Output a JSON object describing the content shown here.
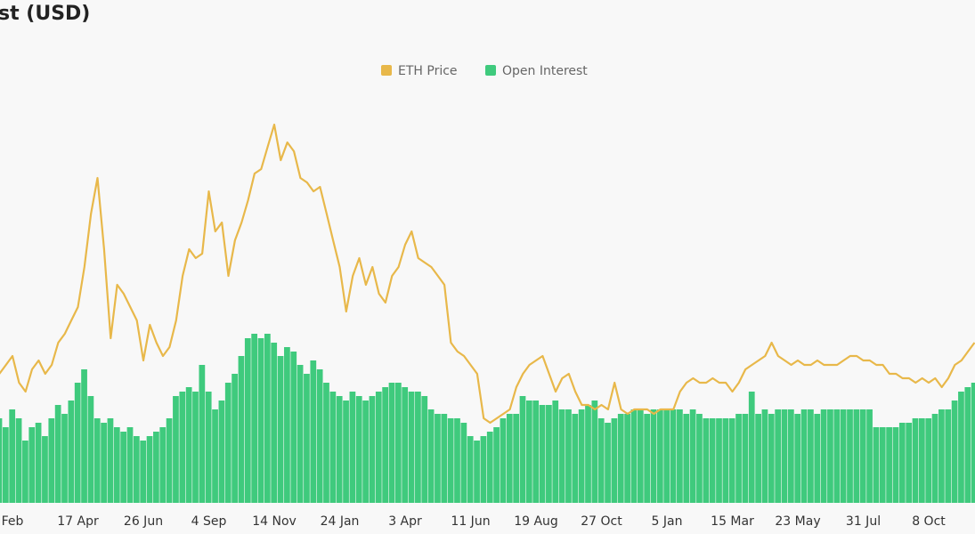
{
  "chart_data": {
    "type": "bar-line",
    "title": "st (USD)",
    "categories": [
      null,
      null,
      "Feb",
      null,
      null,
      null,
      null,
      null,
      null,
      null,
      null,
      null,
      "17 Apr",
      null,
      null,
      null,
      null,
      null,
      null,
      null,
      null,
      null,
      "26 Jun",
      null,
      null,
      null,
      null,
      null,
      null,
      null,
      null,
      null,
      "4 Sep",
      null,
      null,
      null,
      null,
      null,
      null,
      null,
      null,
      null,
      "14 Nov",
      null,
      null,
      null,
      null,
      null,
      null,
      null,
      null,
      null,
      "24 Jan",
      null,
      null,
      null,
      null,
      null,
      null,
      null,
      null,
      null,
      "3 Apr",
      null,
      null,
      null,
      null,
      null,
      null,
      null,
      null,
      null,
      "11 Jun",
      null,
      null,
      null,
      null,
      null,
      null,
      null,
      null,
      null,
      "19 Aug",
      null,
      null,
      null,
      null,
      null,
      null,
      null,
      null,
      null,
      "27 Oct",
      null,
      null,
      null,
      null,
      null,
      null,
      null,
      null,
      null,
      "5 Jan",
      null,
      null,
      null,
      null,
      null,
      null,
      null,
      null,
      null,
      "15 Mar",
      null,
      null,
      null,
      null,
      null,
      null,
      null,
      null,
      null,
      "23 May",
      null,
      null,
      null,
      null,
      null,
      null,
      null,
      null,
      null,
      "31 Jul",
      null,
      null,
      null,
      null,
      null,
      null,
      null,
      null,
      null,
      "8 Oct",
      null,
      null,
      null,
      null,
      null,
      null,
      null
    ],
    "series": [
      {
        "name": "ETH Price",
        "type": "line",
        "color": "#e8b84a",
        "values": [
          29,
          31,
          33,
          27,
          25,
          30,
          32,
          29,
          31,
          36,
          38,
          41,
          44,
          53,
          65,
          73,
          57,
          37,
          49,
          47,
          44,
          41,
          32,
          40,
          36,
          33,
          35,
          41,
          51,
          57,
          55,
          56,
          70,
          61,
          63,
          51,
          59,
          63,
          68,
          74,
          75,
          80,
          85,
          77,
          81,
          79,
          73,
          72,
          70,
          71,
          65,
          59,
          53,
          43,
          51,
          55,
          49,
          53,
          47,
          45,
          51,
          53,
          58,
          61,
          55,
          54,
          53,
          51,
          49,
          36,
          34,
          33,
          31,
          29,
          19,
          18,
          19,
          20,
          21,
          26,
          29,
          31,
          32,
          33,
          29,
          25,
          28,
          29,
          25,
          22,
          22,
          21,
          22,
          21,
          27,
          21,
          20,
          21,
          21,
          21,
          20,
          21,
          21,
          21,
          25,
          27,
          28,
          27,
          27,
          28,
          27,
          27,
          25,
          27,
          30,
          31,
          32,
          33,
          36,
          33,
          32,
          31,
          32,
          31,
          31,
          32,
          31,
          31,
          31,
          32,
          33,
          33,
          32,
          32,
          31,
          31,
          29,
          29,
          28,
          28,
          27,
          28,
          27,
          28,
          26,
          28,
          31,
          32,
          34,
          36
        ]
      },
      {
        "name": "Open Interest",
        "type": "bar",
        "color": "#3fca7d",
        "values": [
          19,
          17,
          21,
          19,
          14,
          17,
          18,
          15,
          19,
          22,
          20,
          23,
          27,
          30,
          24,
          19,
          18,
          19,
          17,
          16,
          17,
          15,
          14,
          15,
          16,
          17,
          19,
          24,
          25,
          26,
          25,
          31,
          25,
          21,
          23,
          27,
          29,
          33,
          37,
          38,
          37,
          38,
          36,
          33,
          35,
          34,
          31,
          29,
          32,
          30,
          27,
          25,
          24,
          23,
          25,
          24,
          23,
          24,
          25,
          26,
          27,
          27,
          26,
          25,
          25,
          24,
          21,
          20,
          20,
          19,
          19,
          18,
          15,
          14,
          15,
          16,
          17,
          19,
          20,
          20,
          24,
          23,
          23,
          22,
          22,
          23,
          21,
          21,
          20,
          21,
          22,
          23,
          19,
          18,
          19,
          20,
          20,
          21,
          21,
          20,
          21,
          21,
          21,
          21,
          21,
          20,
          21,
          20,
          19,
          19,
          19,
          19,
          19,
          20,
          20,
          25,
          20,
          21,
          20,
          21,
          21,
          21,
          20,
          21,
          21,
          20,
          21,
          21,
          21,
          21,
          21,
          21,
          21,
          21,
          17,
          17,
          17,
          17,
          18,
          18,
          19,
          19,
          19,
          20,
          21,
          21,
          23,
          25,
          26,
          27
        ]
      }
    ],
    "ylim": [
      0,
      100
    ]
  }
}
